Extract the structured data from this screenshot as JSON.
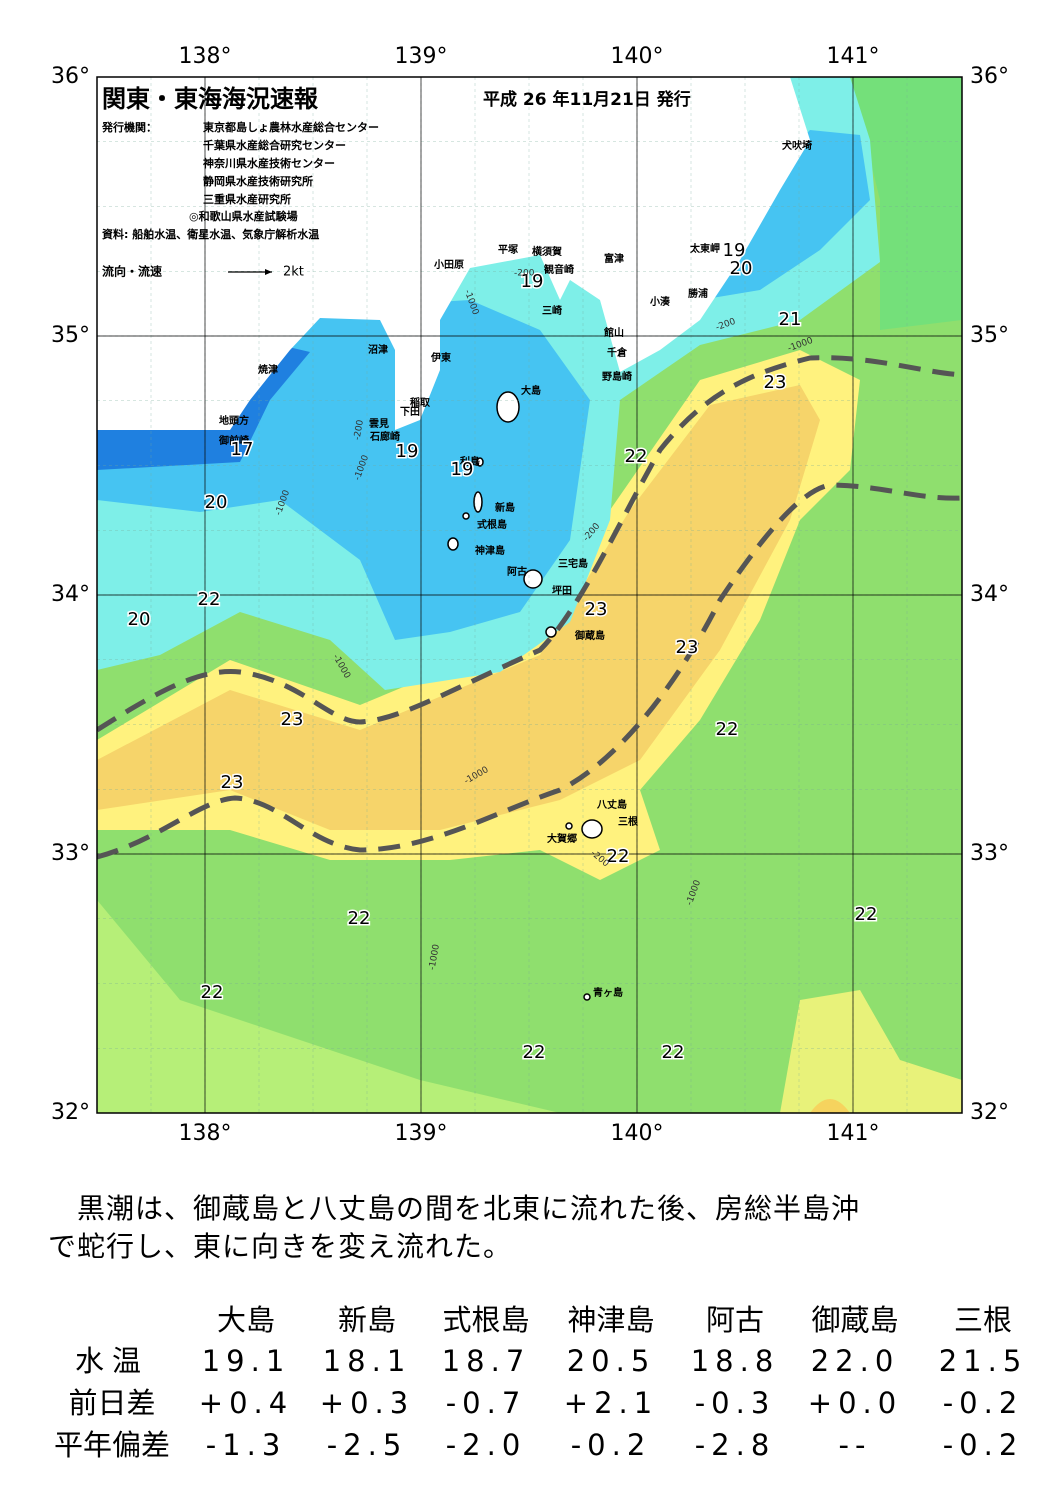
{
  "header": {
    "title": "関東・東海海況速報",
    "date": "平成 26 年11月21日 発行",
    "issuers_label": "発行機関：",
    "issuers": [
      "東京都島しょ農林水産総合センター",
      "千葉県水産総合研究センター",
      "神奈川県水産技術センター",
      "静岡県水産技術研究所",
      "三重県水産研究所",
      "◎和歌山県水産試験場"
    ],
    "source": "資料: 船舶水温、衛星水温、気象庁解析水温",
    "legend_label": "流向・流速",
    "legend_speed": "2kt"
  },
  "axes": {
    "lon": [
      "138°",
      "139°",
      "140°",
      "141°"
    ],
    "lat": [
      "36°",
      "35°",
      "34°",
      "33°",
      "32°"
    ]
  },
  "places": [
    "犬吠埼",
    "太東岬",
    "勝浦",
    "小湊",
    "富津",
    "館山",
    "千倉",
    "野島崎",
    "横須賀",
    "観音崎",
    "三崎",
    "平塚",
    "小田原",
    "沼津",
    "伊東",
    "焼津",
    "稲取",
    "下田",
    "雲見",
    "石廊崎",
    "地頭方",
    "御前崎",
    "大島",
    "利島",
    "新島",
    "式根島",
    "神津島",
    "三宅島",
    "阿古",
    "坪田",
    "御蔵島",
    "八丈島",
    "三根",
    "大賀郷",
    "青ヶ島"
  ],
  "contours": [
    17,
    19,
    19,
    20,
    22,
    20,
    22,
    23,
    21,
    19,
    20,
    19,
    23,
    23,
    23,
    23,
    22,
    22,
    22,
    22,
    22,
    22,
    22
  ],
  "depth_labels": [
    "-200",
    "-1000",
    "-200",
    "-1000",
    "-1000",
    "-200",
    "-1000",
    "-200",
    "-1000",
    "-1000",
    "-1000",
    "-1000",
    "-200"
  ],
  "description": [
    "　黒潮は、御蔵島と八丈島の間を北東に流れた後、房総半島沖",
    "で蛇行し、東に向きを変え流れた。"
  ],
  "table": {
    "columns": [
      "大島",
      "新島",
      "式根島",
      "神津島",
      "阿古",
      "御蔵島",
      "三根"
    ],
    "rows": [
      {
        "label": "水温",
        "values": [
          "19.1",
          "18.1",
          "18.7",
          "20.5",
          "18.8",
          "22.0",
          "21.5"
        ]
      },
      {
        "label": "前日差",
        "values": [
          "+0.4",
          "+0.3",
          "-0.7",
          "+2.1",
          "-0.3",
          "+0.0",
          "-0.2"
        ]
      },
      {
        "label": "平年偏差",
        "values": [
          "-1.3",
          "-2.5",
          "-2.0",
          "-0.2",
          "-2.8",
          "--",
          "-0.2"
        ]
      }
    ]
  }
}
